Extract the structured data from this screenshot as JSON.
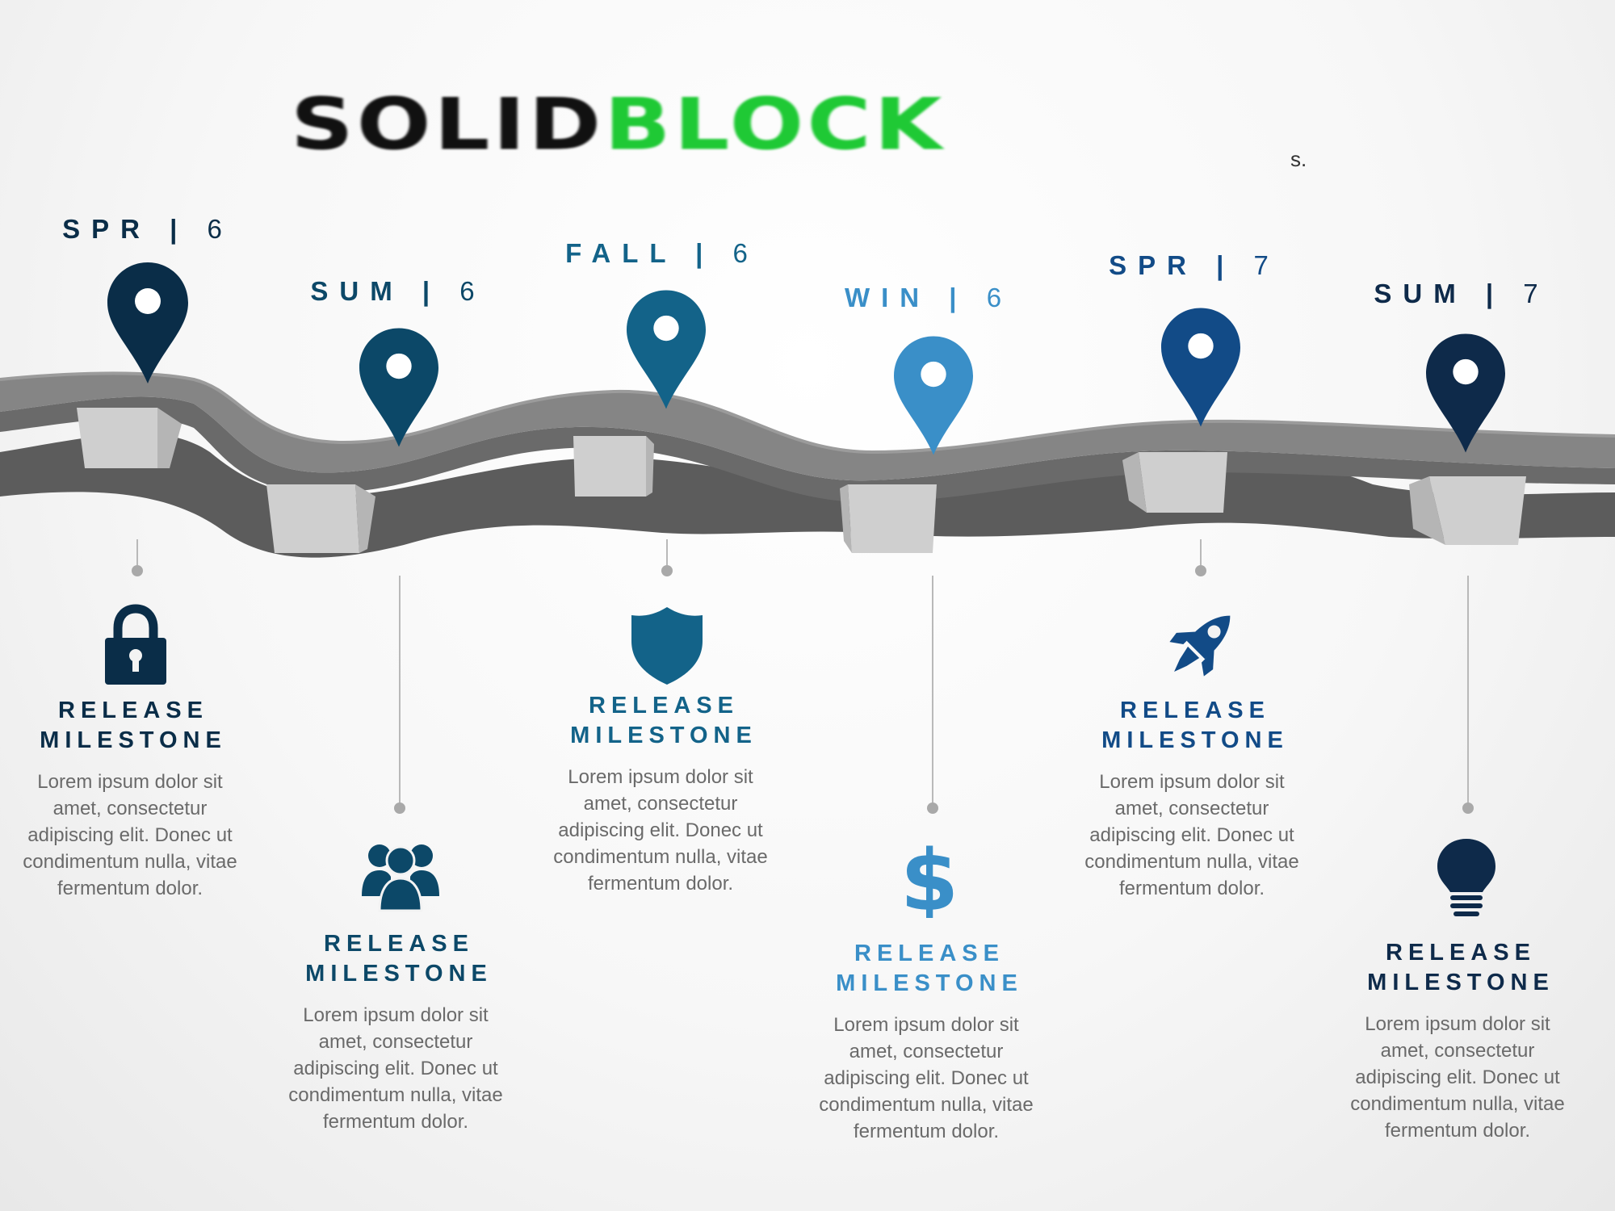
{
  "logo": {
    "part1": "SOLID",
    "part2": "BLOCK",
    "suffix": "s."
  },
  "colors": {
    "navy": "#0a2d48",
    "blue_dark": "#0c4868",
    "blue_mid": "#136389",
    "blue_light": "#3a8fc8",
    "royal": "#124b87",
    "midnight": "#0e2a4a",
    "road_top": "#858585",
    "road_side": "#5c5c5c",
    "block": "#d6d6d6"
  },
  "milestones": [
    {
      "season": "SPR",
      "year": "6",
      "title_line1": "RELEASE",
      "title_line2": "MILESTONE",
      "text": "Lorem ipsum dolor sit amet, consectetur adipiscing elit. Donec ut condimentum nulla, vitae fermentum dolor.",
      "icon": "lock-icon",
      "color": "#0a2d48"
    },
    {
      "season": "SUM",
      "year": "6",
      "title_line1": "RELEASE",
      "title_line2": "MILESTONE",
      "text": "Lorem ipsum dolor sit amet, consectetur adipiscing elit. Donec ut condimentum nulla, vitae fermentum dolor.",
      "icon": "users-icon",
      "color": "#0c4868"
    },
    {
      "season": "FALL",
      "year": "6",
      "title_line1": "RELEASE",
      "title_line2": "MILESTONE",
      "text": "Lorem ipsum dolor sit amet, consectetur adipiscing elit. Donec ut condimentum nulla, vitae fermentum dolor.",
      "icon": "shield-icon",
      "color": "#136389"
    },
    {
      "season": "WIN",
      "year": "6",
      "title_line1": "RELEASE",
      "title_line2": "MILESTONE",
      "text": "Lorem ipsum dolor sit amet, consectetur adipiscing elit. Donec ut condimentum nulla, vitae fermentum dolor.",
      "icon": "dollar-icon",
      "color": "#3a8fc8"
    },
    {
      "season": "SPR",
      "year": "7",
      "title_line1": "RELEASE",
      "title_line2": "MILESTONE",
      "text": "Lorem ipsum dolor sit amet, consectetur adipiscing elit. Donec ut condimentum nulla, vitae fermentum dolor.",
      "icon": "rocket-icon",
      "color": "#124b87"
    },
    {
      "season": "SUM",
      "year": "7",
      "title_line1": "RELEASE",
      "title_line2": "MILESTONE",
      "text": "Lorem ipsum dolor sit amet, consectetur adipiscing elit. Donec ut condimentum nulla, vitae fermentum dolor.",
      "icon": "lightbulb-icon",
      "color": "#0e2a4a"
    }
  ]
}
